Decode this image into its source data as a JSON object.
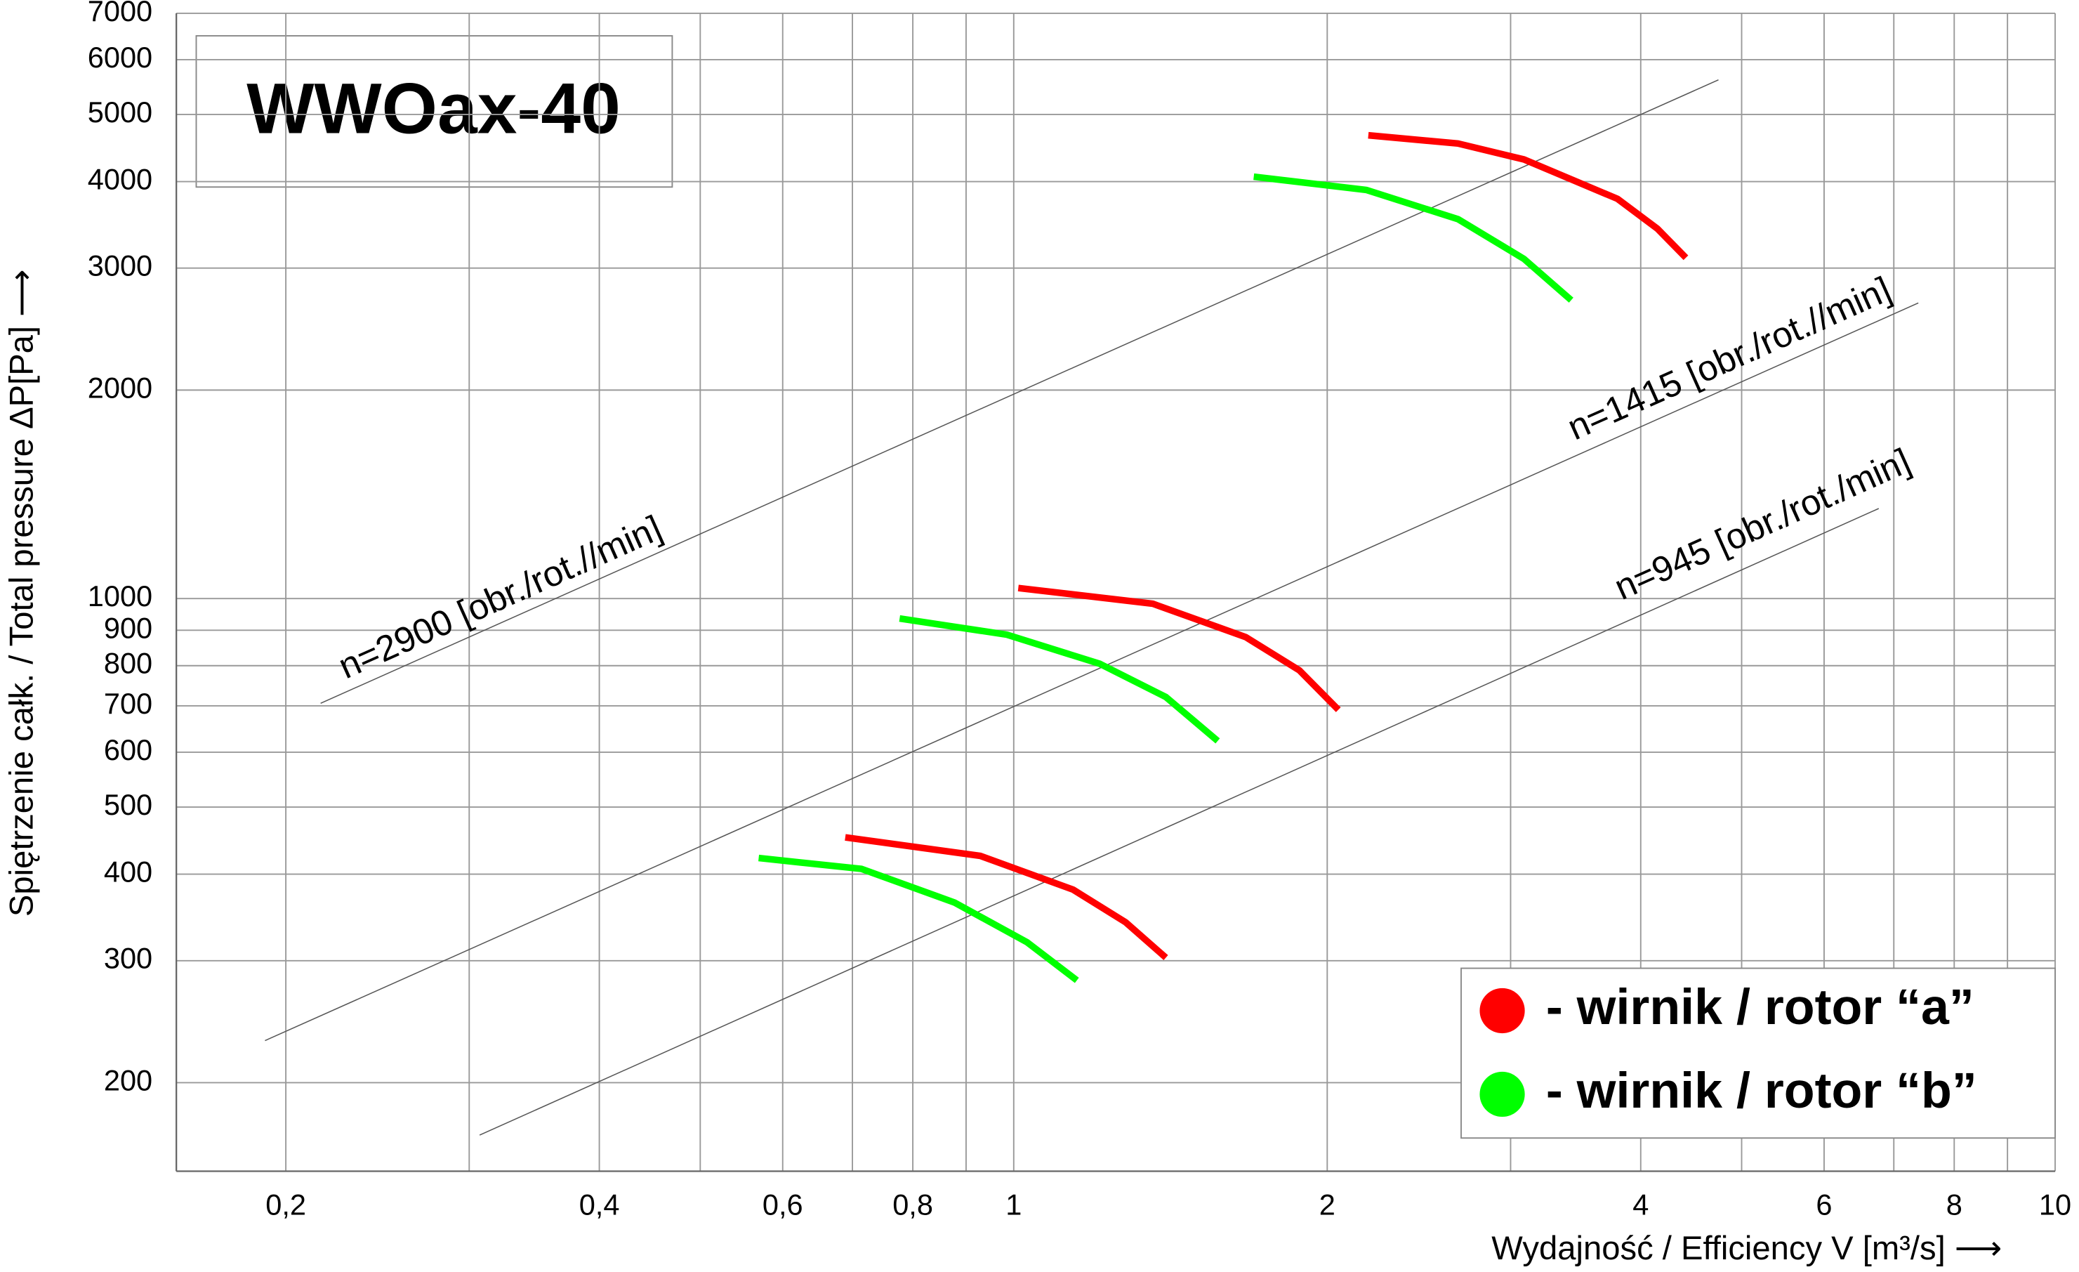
{
  "chart_data": {
    "type": "line",
    "title": "WWOax-40",
    "xlabel": "Wydajność / Efficiency   V [m³/s]   ⟶",
    "ylabel": "Spiętrzenie całk. / Total pressure   ΔP[Pa]  ⟶",
    "xscale": "log",
    "yscale": "log",
    "xlim": [
      0.157,
      10
    ],
    "ylim": [
      149,
      7000
    ],
    "xticks": [
      {
        "value": 0.2,
        "label": "0,2"
      },
      {
        "value": 0.4,
        "label": "0,4"
      },
      {
        "value": 0.6,
        "label": "0,6"
      },
      {
        "value": 0.8,
        "label": "0,8"
      },
      1,
      2,
      4,
      6,
      8,
      10
    ],
    "xminor": [
      0.3,
      0.5,
      0.7,
      0.9,
      3,
      5,
      7,
      9
    ],
    "yticks": [
      200,
      300,
      400,
      500,
      600,
      700,
      800,
      900,
      1000,
      2000,
      3000,
      4000,
      5000,
      6000,
      7000
    ],
    "grid": true,
    "legend": "lower right",
    "series": [
      {
        "name": "- wirnik / rotor “a”",
        "color": "#ff0000",
        "curves": [
          {
            "x": [
              2.19,
              2.67,
              3.09,
              3.8,
              4.15,
              4.42
            ],
            "values": [
              4665,
              4540,
              4306,
              3777,
              3420,
              3105
            ]
          },
          {
            "x": [
              1.01,
              1.36,
              1.67,
              1.88,
              2.05
            ],
            "values": [
              1036,
              983,
              880,
              788,
              691
            ]
          },
          {
            "x": [
              0.689,
              0.929,
              1.14,
              1.28,
              1.4
            ],
            "values": [
              452,
              425,
              380,
              341,
              303
            ]
          }
        ]
      },
      {
        "name": "- wirnik / rotor “b”",
        "color": "#00ff00",
        "curves": [
          {
            "x": [
              1.7,
              2.18,
              2.67,
              3.09,
              3.43
            ],
            "values": [
              4065,
              3890,
              3530,
              3093,
              2697
            ]
          },
          {
            "x": [
              0.777,
              0.985,
              1.21,
              1.4,
              1.57
            ],
            "values": [
              936,
              887,
              805,
              721,
              623
            ]
          },
          {
            "x": [
              0.569,
              0.714,
              0.877,
              1.03,
              1.15
            ],
            "values": [
              422,
              407,
              364,
              319,
              281
            ]
          }
        ]
      }
    ],
    "speed_lines": [
      {
        "label": "n=2900 [obr./rot.//min]",
        "x": [
          0.216,
          4.75
        ],
        "values": [
          706,
          5610
        ]
      },
      {
        "label": "n=1415 [obr./rot.//min]",
        "x": [
          0.191,
          7.39
        ],
        "values": [
          230,
          2672
        ]
      },
      {
        "label": "n=945 [obr./rot./min]",
        "x": [
          0.307,
          6.77
        ],
        "values": [
          168,
          1349
        ]
      }
    ]
  }
}
